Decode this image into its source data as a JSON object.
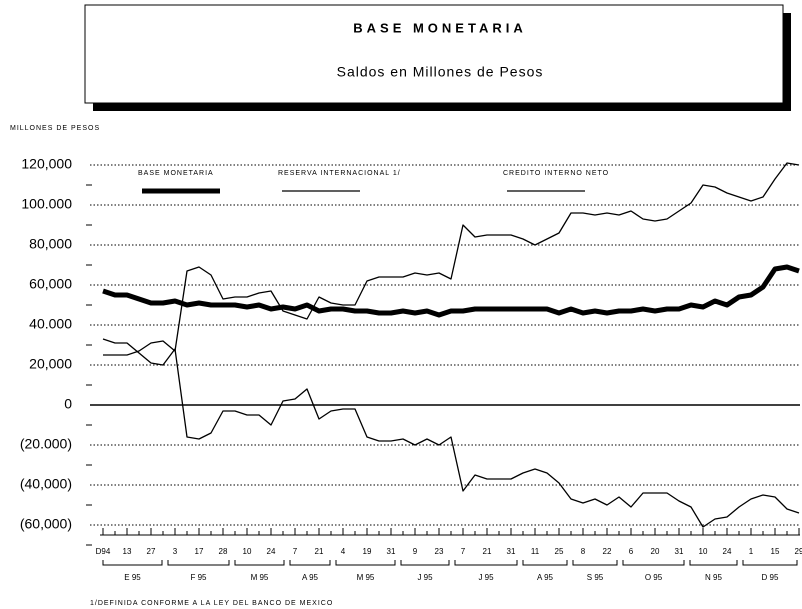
{
  "chart_data": {
    "type": "line",
    "title": "BASE MONETARIA",
    "subtitle": "Saldos en Millones de Pesos",
    "y_label": "MILLONES  DE PESOS",
    "footnote": "1/DEFINIDA CONFORME A LA LEY DEL BANCO DE MEXICO",
    "categories": [
      "D94",
      null,
      "13",
      null,
      "27",
      null,
      "3",
      null,
      "17",
      null,
      "28",
      null,
      "10",
      null,
      "24",
      null,
      "7",
      null,
      "21",
      null,
      "4",
      null,
      "19",
      null,
      "31",
      null,
      "9",
      null,
      "23",
      null,
      "7",
      null,
      "21",
      null,
      "31",
      null,
      "11",
      null,
      "25",
      null,
      "8",
      null,
      "22",
      null,
      "6",
      null,
      "20",
      null,
      "31",
      null,
      "10",
      null,
      "24",
      null,
      "1",
      null,
      "15",
      null,
      "29"
    ],
    "x_groups": [
      "E 95",
      "F 95",
      "M 95",
      "A 95",
      "M 95",
      "J 95",
      "J 95",
      "A 95",
      "S 95",
      "O 95",
      "N 95",
      "D 95"
    ],
    "ylim": [
      -65000,
      130000
    ],
    "yticks": [
      {
        "value": 120000,
        "label": "120,000"
      },
      {
        "value": 100000,
        "label": "100.000"
      },
      {
        "value": 80000,
        "label": "80,000"
      },
      {
        "value": 60000,
        "label": "60,000"
      },
      {
        "value": 40000,
        "label": "40.000"
      },
      {
        "value": 20000,
        "label": "20,000"
      },
      0,
      {
        "value": -20000,
        "label": "(20.000)"
      },
      {
        "value": -40000,
        "label": "(40,000)"
      },
      {
        "value": -60000,
        "label": "(60,000)"
      }
    ],
    "grid": true,
    "series": [
      {
        "name": "BASE MONETARIA",
        "color": "#000",
        "width": 5,
        "values": [
          57000,
          55000,
          55000,
          53000,
          51000,
          51000,
          52000,
          50000,
          51000,
          50000,
          50000,
          50000,
          49000,
          50000,
          48000,
          49000,
          48000,
          50000,
          47000,
          48000,
          48000,
          47000,
          47000,
          46000,
          46000,
          47000,
          46000,
          47000,
          45000,
          47000,
          47000,
          48000,
          48000,
          48000,
          48000,
          48000,
          48000,
          48000,
          46000,
          48000,
          46000,
          47000,
          46000,
          47000,
          47000,
          48000,
          47000,
          48000,
          48000,
          50000,
          49000,
          52000,
          50000,
          54000,
          55000,
          59000,
          68000,
          69000,
          67000
        ]
      },
      {
        "name": "RESERVA INTERNACIONAL 1/",
        "color": "#000",
        "width": 1.3,
        "values": [
          25000,
          25000,
          25000,
          27000,
          31000,
          32000,
          27000,
          67000,
          69000,
          65000,
          53000,
          54000,
          54000,
          56000,
          57000,
          47000,
          45000,
          43000,
          54000,
          51000,
          50000,
          50000,
          62000,
          64000,
          64000,
          64000,
          66000,
          65000,
          66000,
          63000,
          90000,
          84000,
          85000,
          85000,
          85000,
          83000,
          80000,
          83000,
          86000,
          96000,
          96000,
          95000,
          96000,
          95000,
          97000,
          93000,
          92000,
          93000,
          97000,
          101000,
          110000,
          109000,
          106000,
          104000,
          102000,
          104000,
          113000,
          121000,
          120000
        ]
      },
      {
        "name": "CREDITO INTERNO NETO",
        "color": "#000",
        "width": 1.3,
        "values": [
          33000,
          31000,
          31000,
          26000,
          21000,
          20000,
          28000,
          -16000,
          -17000,
          -14000,
          -3000,
          -3000,
          -5000,
          -5000,
          -10000,
          2000,
          3000,
          8000,
          -7000,
          -3000,
          -2000,
          -2000,
          -16000,
          -18000,
          -18000,
          -17000,
          -20000,
          -17000,
          -20000,
          -16000,
          -43000,
          -35000,
          -37000,
          -37000,
          -37000,
          -34000,
          -32000,
          -34000,
          -39000,
          -47000,
          -49000,
          -47000,
          -50000,
          -46000,
          -51000,
          -44000,
          -44000,
          -44000,
          -48000,
          -51000,
          -61000,
          -57000,
          -56000,
          -51000,
          -47000,
          -45000,
          -46000,
          -52000,
          -54000
        ]
      }
    ]
  }
}
